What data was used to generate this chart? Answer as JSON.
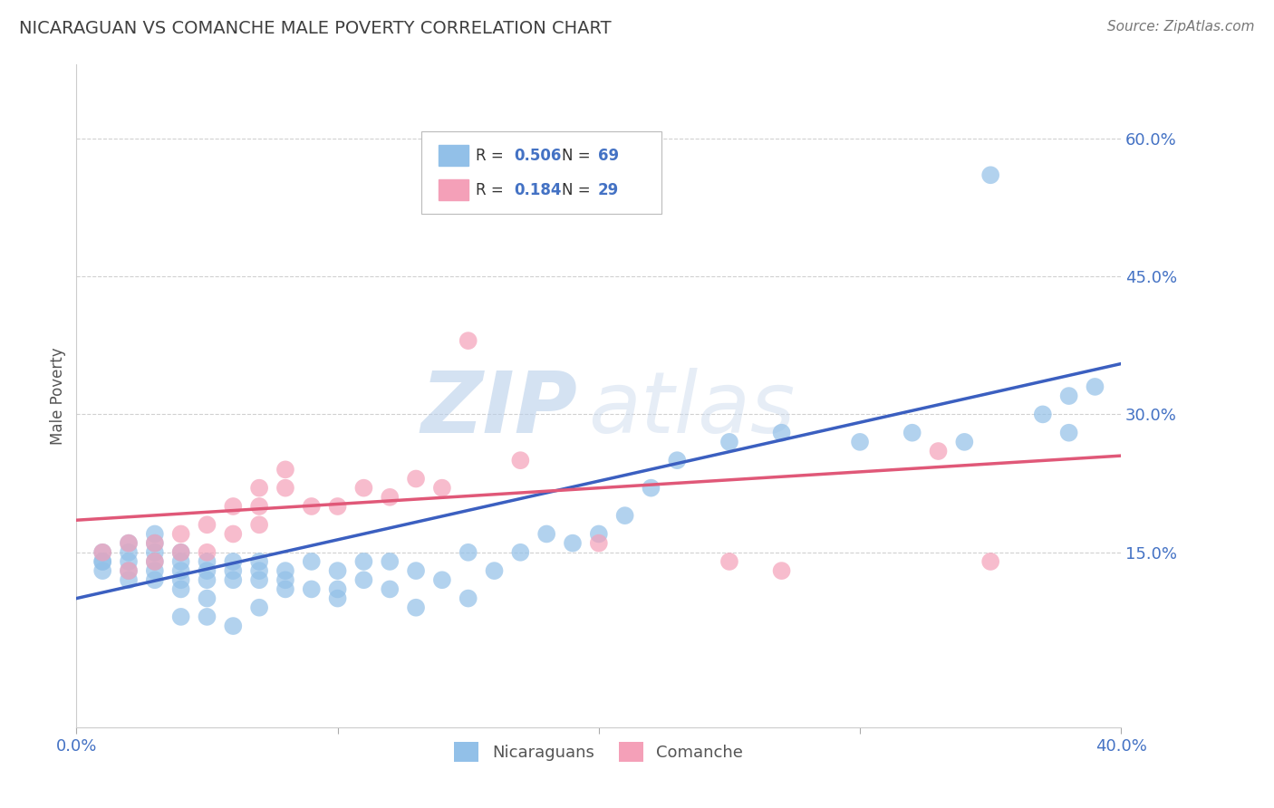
{
  "title": "NICARAGUAN VS COMANCHE MALE POVERTY CORRELATION CHART",
  "source": "Source: ZipAtlas.com",
  "ylabel": "Male Poverty",
  "x_min": 0.0,
  "x_max": 0.4,
  "y_min": -0.04,
  "y_max": 0.68,
  "y_ticks": [
    0.15,
    0.3,
    0.45,
    0.6
  ],
  "y_tick_labels": [
    "15.0%",
    "30.0%",
    "45.0%",
    "60.0%"
  ],
  "blue_R": 0.506,
  "blue_N": 69,
  "pink_R": 0.184,
  "pink_N": 29,
  "blue_color": "#92C0E8",
  "pink_color": "#F4A0B8",
  "blue_line_color": "#3B5FC0",
  "pink_line_color": "#E05878",
  "legend_label_blue": "Nicaraguans",
  "legend_label_pink": "Comanche",
  "watermark_zip": "ZIP",
  "watermark_atlas": "atlas",
  "background_color": "#FFFFFF",
  "grid_color": "#CCCCCC",
  "title_color": "#404040",
  "axis_label_color": "#4472C4",
  "blue_scatter_x": [
    0.01,
    0.01,
    0.01,
    0.01,
    0.02,
    0.02,
    0.02,
    0.02,
    0.02,
    0.03,
    0.03,
    0.03,
    0.03,
    0.03,
    0.03,
    0.04,
    0.04,
    0.04,
    0.04,
    0.04,
    0.04,
    0.05,
    0.05,
    0.05,
    0.05,
    0.05,
    0.06,
    0.06,
    0.06,
    0.06,
    0.07,
    0.07,
    0.07,
    0.07,
    0.08,
    0.08,
    0.08,
    0.09,
    0.09,
    0.1,
    0.1,
    0.1,
    0.11,
    0.11,
    0.12,
    0.12,
    0.13,
    0.13,
    0.14,
    0.15,
    0.15,
    0.16,
    0.17,
    0.18,
    0.19,
    0.2,
    0.21,
    0.22,
    0.23,
    0.25,
    0.27,
    0.3,
    0.32,
    0.34,
    0.35,
    0.37,
    0.38,
    0.38,
    0.39
  ],
  "blue_scatter_y": [
    0.13,
    0.14,
    0.14,
    0.15,
    0.12,
    0.13,
    0.14,
    0.15,
    0.16,
    0.12,
    0.13,
    0.14,
    0.15,
    0.16,
    0.17,
    0.11,
    0.12,
    0.13,
    0.14,
    0.15,
    0.08,
    0.1,
    0.12,
    0.13,
    0.14,
    0.08,
    0.12,
    0.13,
    0.14,
    0.07,
    0.12,
    0.13,
    0.14,
    0.09,
    0.11,
    0.12,
    0.13,
    0.11,
    0.14,
    0.1,
    0.11,
    0.13,
    0.12,
    0.14,
    0.11,
    0.14,
    0.13,
    0.09,
    0.12,
    0.15,
    0.1,
    0.13,
    0.15,
    0.17,
    0.16,
    0.17,
    0.19,
    0.22,
    0.25,
    0.27,
    0.28,
    0.27,
    0.28,
    0.27,
    0.56,
    0.3,
    0.28,
    0.32,
    0.33
  ],
  "pink_scatter_x": [
    0.01,
    0.02,
    0.02,
    0.03,
    0.03,
    0.04,
    0.04,
    0.05,
    0.05,
    0.06,
    0.06,
    0.07,
    0.07,
    0.07,
    0.08,
    0.08,
    0.09,
    0.1,
    0.11,
    0.12,
    0.13,
    0.14,
    0.15,
    0.17,
    0.2,
    0.25,
    0.27,
    0.33,
    0.35
  ],
  "pink_scatter_y": [
    0.15,
    0.13,
    0.16,
    0.14,
    0.16,
    0.15,
    0.17,
    0.15,
    0.18,
    0.17,
    0.2,
    0.18,
    0.2,
    0.22,
    0.22,
    0.24,
    0.2,
    0.2,
    0.22,
    0.21,
    0.23,
    0.22,
    0.38,
    0.25,
    0.16,
    0.14,
    0.13,
    0.26,
    0.14
  ],
  "blue_line_x0": 0.0,
  "blue_line_y0": 0.1,
  "blue_line_x1": 0.4,
  "blue_line_y1": 0.355,
  "pink_line_x0": 0.0,
  "pink_line_y0": 0.185,
  "pink_line_x1": 0.4,
  "pink_line_y1": 0.255
}
